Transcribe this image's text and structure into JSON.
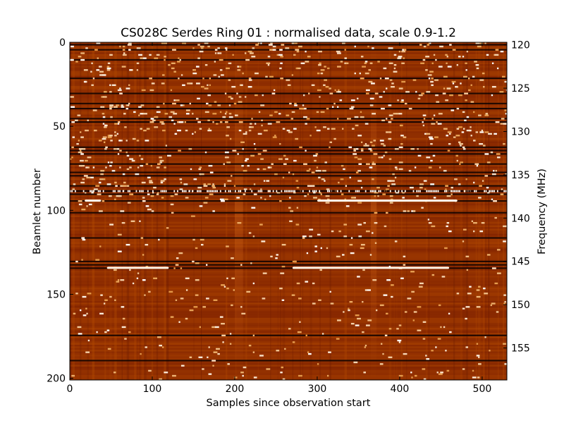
{
  "chart_data": {
    "type": "heatmap",
    "title": "CS028C Serdes Ring 01 : normalised data, scale 0.9-1.2",
    "xlabel": "Samples since observation start",
    "ylabel": "Beamlet number",
    "y2label": "Frequency (MHz)",
    "xlim": [
      0,
      530
    ],
    "ylim": [
      0,
      201
    ],
    "y2lim": [
      119.7,
      158.7
    ],
    "x_ticks": [
      "0",
      "100",
      "200",
      "300",
      "400",
      "500"
    ],
    "x_tick_values": [
      0,
      100,
      200,
      300,
      400,
      500
    ],
    "y_ticks": [
      "0",
      "50",
      "100",
      "150",
      "200"
    ],
    "y_tick_values": [
      0,
      50,
      100,
      150,
      200
    ],
    "y2_ticks": [
      "120",
      "125",
      "130",
      "135",
      "140",
      "145",
      "150",
      "155"
    ],
    "y2_tick_values": [
      120,
      125,
      130,
      135,
      140,
      145,
      150,
      155
    ],
    "colormap": {
      "name": "afmhot",
      "vmin": 0.9,
      "vmax": 1.2,
      "colors": [
        "#000000",
        "#7a1d00",
        "#b34a00",
        "#e8a050",
        "#ffffff"
      ]
    },
    "dark_beamlet_rows": [
      1,
      4,
      10,
      21,
      30,
      36,
      39,
      45,
      47,
      62,
      64,
      66,
      72,
      77,
      79,
      85,
      88,
      90,
      94,
      101,
      116,
      130,
      132,
      134,
      174,
      189
    ],
    "bright_features": [
      {
        "beamlet": 94,
        "sample_start": 300,
        "sample_end": 470
      },
      {
        "beamlet": 94,
        "sample_start": 18,
        "sample_end": 38
      },
      {
        "beamlet": 134,
        "sample_start": 45,
        "sample_end": 120
      },
      {
        "beamlet": 134,
        "sample_start": 270,
        "sample_end": 460
      }
    ]
  }
}
